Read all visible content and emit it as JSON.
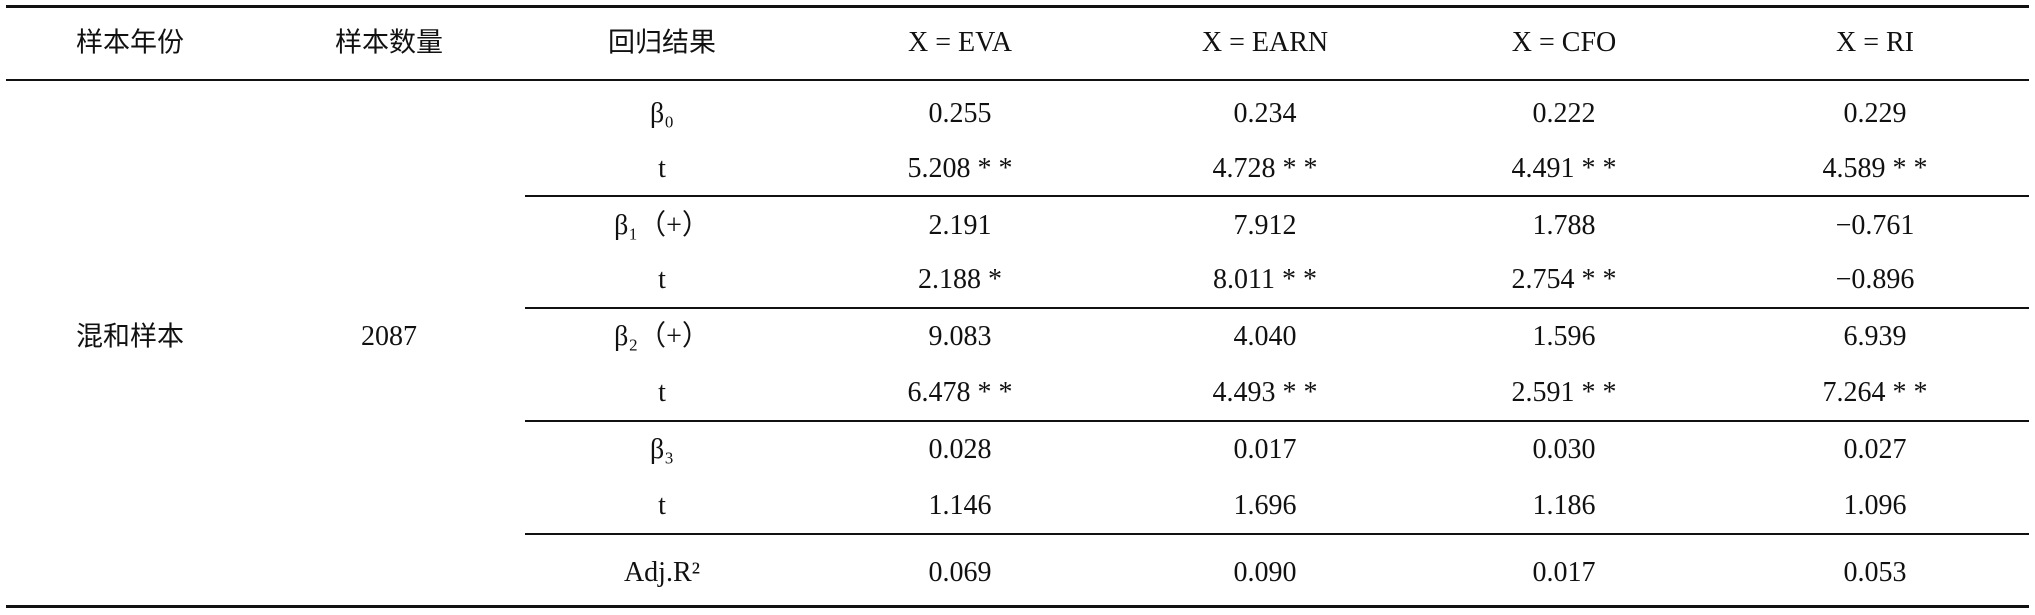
{
  "table": {
    "header": [
      "样本年份",
      "样本数量",
      "回归结果",
      "X = EVA",
      "X = EARN",
      "X = CFO",
      "X = RI"
    ],
    "sample_year": "混和样本",
    "sample_size": "2087",
    "rows": [
      [
        "β₀",
        "0.255",
        "0.234",
        "0.222",
        "0.229"
      ],
      [
        "t",
        "5.208 * *",
        "4.728 * *",
        "4.491 * *",
        "4.589 * *"
      ],
      [
        "β₁（+）",
        "2.191",
        "7.912",
        "1.788",
        "−0.761"
      ],
      [
        "t",
        "2.188 *",
        "8.011 * *",
        "2.754 * *",
        "−0.896"
      ],
      [
        "β₂（+）",
        "9.083",
        "4.040",
        "1.596",
        "6.939"
      ],
      [
        "t",
        "6.478 * *",
        "4.493 * *",
        "2.591 * *",
        "7.264 * *"
      ],
      [
        "β₃",
        "0.028",
        "0.017",
        "0.030",
        "0.027"
      ],
      [
        "t",
        "1.146",
        "1.696",
        "1.186",
        "1.096"
      ],
      [
        "Adj.R²",
        "0.069",
        "0.090",
        "0.017",
        "0.053"
      ]
    ]
  }
}
